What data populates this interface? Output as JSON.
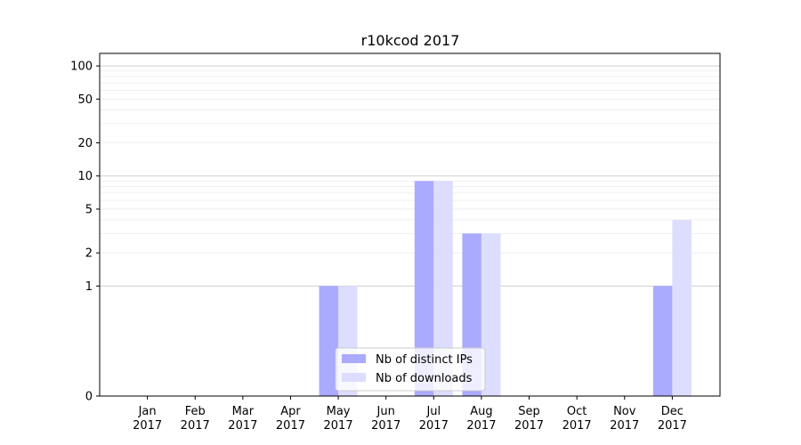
{
  "chart_data": {
    "type": "bar",
    "title": "r10kcod 2017",
    "xlabel": "",
    "ylabel": "",
    "y_scale": "symlog",
    "ylim": [
      0,
      130
    ],
    "y_ticks": [
      0,
      1,
      2,
      5,
      10,
      20,
      50,
      100
    ],
    "categories": [
      "Jan\n2017",
      "Feb\n2017",
      "Mar\n2017",
      "Apr\n2017",
      "May\n2017",
      "Jun\n2017",
      "Jul\n2017",
      "Aug\n2017",
      "Sep\n2017",
      "Oct\n2017",
      "Nov\n2017",
      "Dec\n2017"
    ],
    "series": [
      {
        "name": "Nb of distinct IPs",
        "color": "#aaaaff",
        "values": [
          0,
          0,
          0,
          0,
          1,
          0,
          9,
          3,
          0,
          0,
          0,
          1
        ]
      },
      {
        "name": "Nb of downloads",
        "color": "#ddddff",
        "values": [
          0,
          0,
          0,
          0,
          1,
          0,
          9,
          3,
          0,
          0,
          0,
          4
        ]
      }
    ],
    "grid": true,
    "legend_position": "bottom-center"
  }
}
